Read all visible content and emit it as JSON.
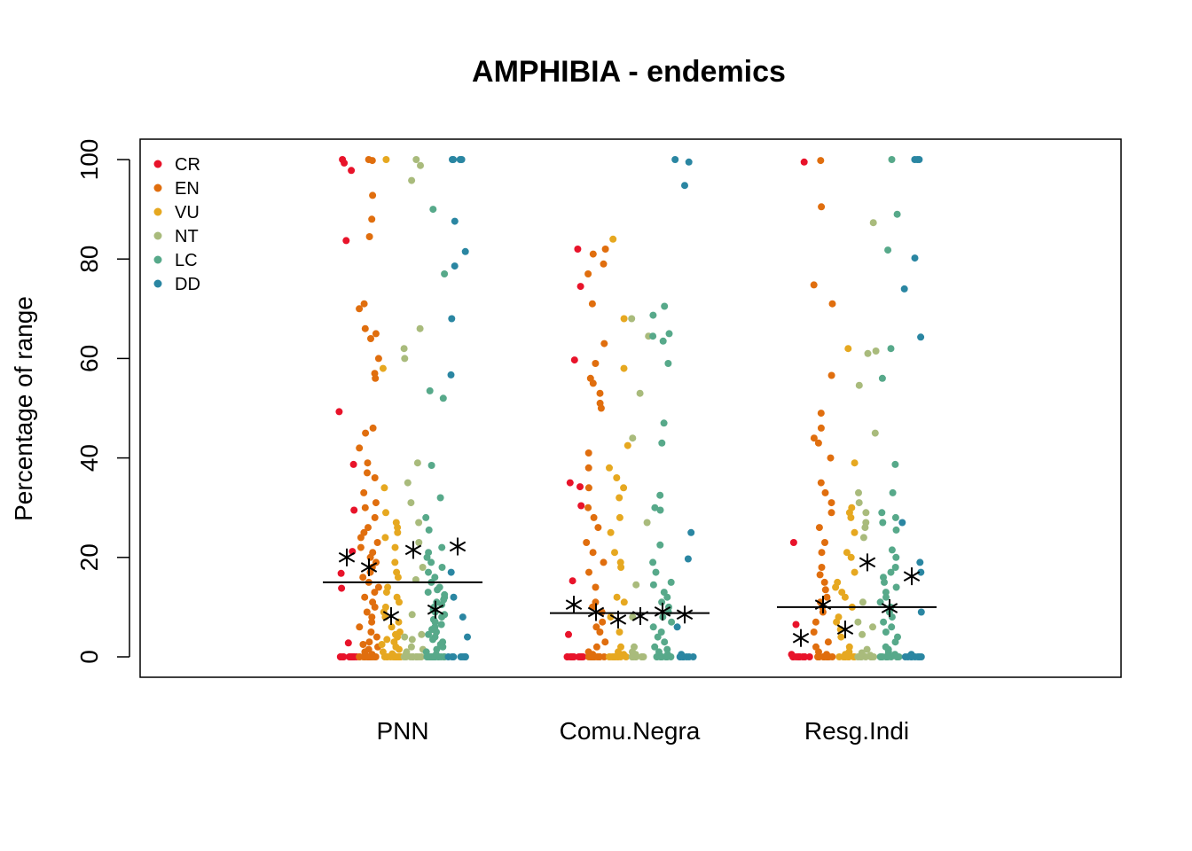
{
  "chart_data": {
    "type": "scatter",
    "title": "AMPHIBIA - endemics",
    "xlabel": "",
    "ylabel": "Percentage of range",
    "ylim": [
      0,
      100
    ],
    "yticks": [
      0,
      20,
      40,
      60,
      80,
      100
    ],
    "categories": [
      "PNN",
      "Comu.Negra",
      "Resg.Indi"
    ],
    "legend": {
      "position": "top-left",
      "entries": [
        {
          "label": "CR",
          "color": "#e8132a"
        },
        {
          "label": "EN",
          "color": "#e06e0e"
        },
        {
          "label": "VU",
          "color": "#e6a820"
        },
        {
          "label": "NT",
          "color": "#a9bb7c"
        },
        {
          "label": "LC",
          "color": "#57a98a"
        },
        {
          "label": "DD",
          "color": "#2a86a2"
        }
      ]
    },
    "category_medians": [
      15,
      8.8,
      10
    ],
    "series": [
      {
        "name": "CR",
        "color": "#e8132a",
        "means": [
          20,
          10.5,
          3.8
        ],
        "points": [
          [
            0,
            0,
            0,
            0,
            0,
            0,
            0,
            0,
            0,
            0,
            0,
            0,
            0,
            0,
            2.8,
            13.8,
            16.8,
            21.2,
            29.5,
            38.7,
            49.3,
            83.7,
            97.8,
            99.3,
            100
          ],
          [
            0,
            0,
            0,
            0,
            0,
            0,
            0,
            0,
            0,
            0,
            0,
            0,
            0,
            0,
            4.5,
            15.3,
            30.4,
            34.2,
            35,
            59.7,
            74.5,
            82
          ],
          [
            0,
            0,
            0,
            0,
            0,
            0,
            0,
            0,
            0,
            0,
            0,
            0,
            0.5,
            6.5,
            23,
            99.5
          ]
        ]
      },
      {
        "name": "EN",
        "color": "#e06e0e",
        "means": [
          18,
          9,
          10.5
        ],
        "points": [
          [
            0,
            0,
            0,
            0,
            0,
            0,
            0,
            0,
            0,
            0,
            0,
            0,
            0,
            0,
            0,
            0.5,
            1,
            1.5,
            2,
            2.5,
            3,
            4,
            5,
            6,
            7,
            8,
            9,
            10,
            11,
            12,
            13,
            14,
            15,
            16,
            17,
            18,
            19,
            20,
            21,
            22,
            23,
            24,
            25,
            26,
            28,
            30,
            31,
            33,
            36,
            37,
            39,
            42,
            45,
            46,
            56,
            57,
            60,
            64,
            65,
            66,
            70,
            71,
            84.5,
            88,
            92.8,
            99.8,
            100
          ],
          [
            0,
            0,
            0,
            0,
            0,
            0,
            0,
            0,
            0,
            0,
            0,
            0,
            0,
            0.5,
            1,
            2,
            3,
            5,
            6,
            7,
            9,
            10,
            11,
            14,
            17,
            19,
            21,
            23,
            26,
            28,
            30,
            34,
            38,
            41,
            50,
            51,
            53,
            55,
            56,
            59,
            63,
            71,
            77,
            79,
            81,
            82
          ],
          [
            0,
            0,
            0,
            0,
            0,
            0,
            0,
            0,
            0,
            0,
            0,
            0,
            0,
            0.5,
            1,
            2,
            3,
            5,
            7,
            9,
            10,
            11,
            12,
            13.5,
            15,
            16.5,
            18,
            21,
            23,
            26,
            29,
            31,
            33,
            35,
            40,
            43,
            44,
            46,
            49,
            56.6,
            71,
            74.8,
            90.5,
            99.8
          ]
        ]
      },
      {
        "name": "VU",
        "color": "#e6a820",
        "means": [
          8.2,
          7.5,
          5.5
        ],
        "points": [
          [
            0,
            0,
            0,
            0,
            0,
            0,
            0,
            0,
            0,
            0,
            0,
            0,
            0,
            0.3,
            0.6,
            1,
            1.5,
            2,
            2.5,
            3,
            3.5,
            4,
            4.5,
            5,
            6,
            7,
            8,
            9,
            10,
            11,
            12,
            13,
            14,
            16,
            17,
            19,
            22,
            24,
            25,
            26,
            27,
            29,
            34,
            58,
            100
          ],
          [
            0,
            0,
            0,
            0,
            0,
            0,
            0,
            0,
            0,
            0,
            0.5,
            1,
            2,
            5,
            8,
            11,
            12,
            18,
            19,
            21,
            25,
            28,
            32,
            34,
            36,
            38,
            42.5,
            58,
            68,
            84
          ],
          [
            0,
            0,
            0,
            0,
            0,
            0,
            0,
            0,
            0,
            0,
            0.5,
            1,
            2,
            4,
            5.5,
            7,
            8,
            10,
            12,
            13,
            14,
            15,
            17,
            20,
            21,
            25,
            28,
            29,
            30,
            39,
            62
          ]
        ]
      },
      {
        "name": "NT",
        "color": "#a9bb7c",
        "means": [
          21.5,
          8.2,
          19
        ],
        "points": [
          [
            0,
            0,
            0,
            0,
            0,
            0,
            0,
            0,
            0,
            0,
            0.5,
            1,
            1.5,
            2,
            3.5,
            4,
            4.5,
            8.5,
            15.5,
            18,
            23,
            27,
            31,
            35,
            39,
            60,
            62,
            66,
            95.8,
            98.8,
            100
          ],
          [
            0,
            0,
            0,
            0,
            0,
            0,
            0,
            0,
            0.5,
            1,
            2,
            8,
            14.5,
            27,
            44,
            53,
            64.5,
            68
          ],
          [
            0,
            0,
            0,
            0,
            0,
            0,
            0,
            0,
            0.3,
            0.8,
            1.5,
            4.5,
            6,
            7,
            11,
            24,
            26,
            27,
            29,
            31,
            33,
            45,
            54.6,
            61,
            61.5,
            87.3
          ]
        ]
      },
      {
        "name": "LC",
        "color": "#57a98a",
        "means": [
          9.5,
          9.1,
          9.8
        ],
        "points": [
          [
            0,
            0,
            0,
            0,
            0,
            0,
            0,
            0,
            0,
            0,
            0,
            0,
            0,
            0,
            0,
            0.5,
            1,
            1.5,
            2,
            2.5,
            3,
            3.5,
            4,
            4.5,
            5,
            5.5,
            6,
            6.5,
            7,
            7.5,
            8,
            8.5,
            9,
            9.5,
            10,
            10.5,
            11,
            11.5,
            12,
            12.5,
            13,
            13.5,
            14,
            15,
            16,
            17,
            18,
            19,
            20,
            21,
            22,
            25.5,
            28,
            32,
            38.5,
            52,
            53.5,
            77,
            90
          ],
          [
            0,
            0,
            0,
            0,
            0,
            0,
            0,
            0,
            0,
            0,
            0.5,
            1,
            1.5,
            2,
            3,
            4,
            5,
            6,
            7,
            8,
            9,
            10,
            11,
            12,
            13,
            14.5,
            15,
            17,
            19,
            22.5,
            29.5,
            30,
            32.5,
            43,
            47,
            59,
            63.5,
            64.5,
            65,
            68.7,
            70.5
          ],
          [
            0,
            0,
            0,
            0,
            0,
            0,
            0,
            0,
            0,
            0,
            0,
            0,
            0.5,
            1,
            1.5,
            2,
            3,
            4,
            5,
            6,
            7,
            8,
            9,
            10,
            11,
            12,
            13,
            14,
            15,
            16,
            17,
            18,
            20,
            21.5,
            25.5,
            27,
            28,
            29,
            33,
            38.7,
            56,
            62,
            81.8,
            89,
            100
          ]
        ]
      },
      {
        "name": "DD",
        "color": "#2a86a2",
        "means": [
          22.2,
          8.5,
          16.2
        ],
        "points": [
          [
            0,
            0,
            0,
            0,
            0,
            0,
            0,
            0,
            0,
            4,
            8,
            12,
            17,
            56.7,
            68,
            78.6,
            81.5,
            87.6,
            100,
            100,
            100,
            100
          ],
          [
            0,
            0,
            0,
            0,
            0,
            0,
            0,
            0,
            0.5,
            6,
            19.7,
            25,
            94.8,
            99.5,
            100
          ],
          [
            0,
            0,
            0,
            0,
            0,
            0,
            0,
            0,
            0.5,
            9,
            17,
            19,
            27,
            64.3,
            74,
            80.2,
            100,
            100,
            100
          ]
        ]
      }
    ]
  }
}
